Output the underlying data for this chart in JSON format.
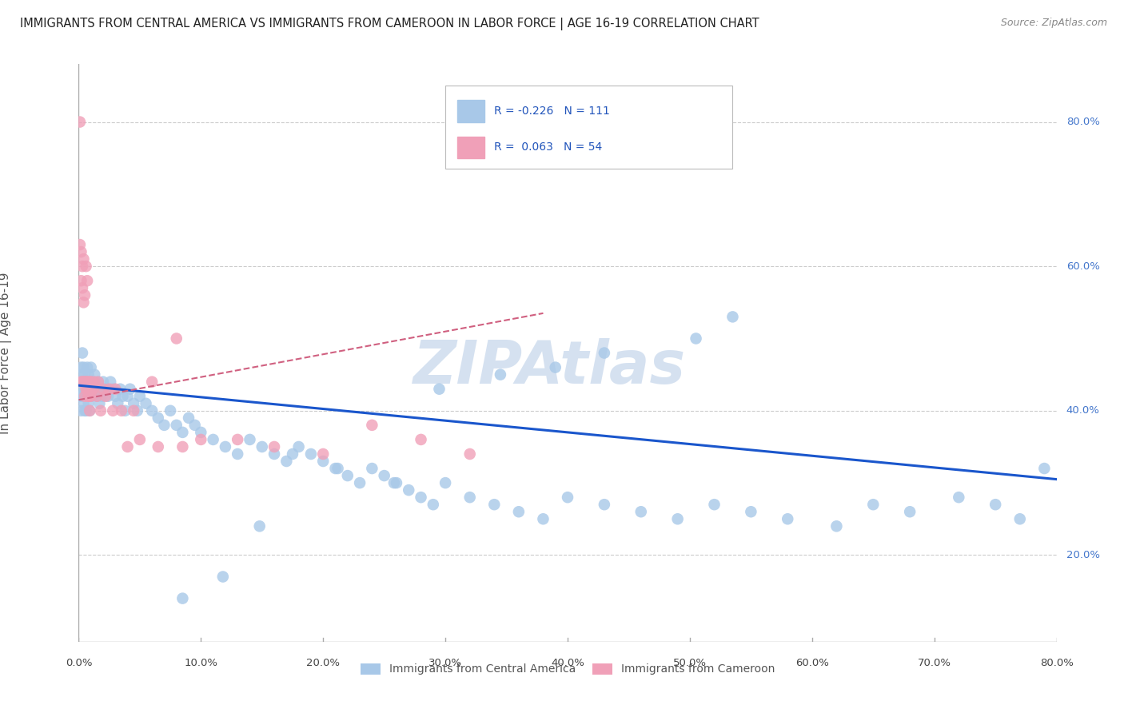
{
  "title": "IMMIGRANTS FROM CENTRAL AMERICA VS IMMIGRANTS FROM CAMEROON IN LABOR FORCE | AGE 16-19 CORRELATION CHART",
  "source": "Source: ZipAtlas.com",
  "ylabel": "In Labor Force | Age 16-19",
  "xlim": [
    0.0,
    0.8
  ],
  "ylim": [
    0.08,
    0.88
  ],
  "xticks": [
    0.0,
    0.1,
    0.2,
    0.3,
    0.4,
    0.5,
    0.6,
    0.7,
    0.8
  ],
  "yticks_right": [
    0.2,
    0.4,
    0.6,
    0.8
  ],
  "r_blue": -0.226,
  "n_blue": 111,
  "r_pink": 0.063,
  "n_pink": 54,
  "color_blue": "#A8C8E8",
  "color_pink": "#F0A0B8",
  "line_blue": "#1A56CC",
  "line_pink": "#D06080",
  "legend_label_blue": "Immigrants from Central America",
  "legend_label_pink": "Immigrants from Cameroon",
  "watermark": "ZIPAtlas",
  "background_color": "#ffffff",
  "grid_color": "#cccccc",
  "blue_x": [
    0.001,
    0.001,
    0.002,
    0.002,
    0.002,
    0.003,
    0.003,
    0.003,
    0.004,
    0.004,
    0.004,
    0.005,
    0.005,
    0.005,
    0.006,
    0.006,
    0.006,
    0.007,
    0.007,
    0.008,
    0.008,
    0.008,
    0.009,
    0.009,
    0.01,
    0.01,
    0.01,
    0.011,
    0.012,
    0.013,
    0.014,
    0.015,
    0.016,
    0.017,
    0.018,
    0.019,
    0.02,
    0.022,
    0.024,
    0.026,
    0.028,
    0.03,
    0.032,
    0.034,
    0.036,
    0.038,
    0.04,
    0.042,
    0.045,
    0.048,
    0.05,
    0.055,
    0.06,
    0.065,
    0.07,
    0.075,
    0.08,
    0.085,
    0.09,
    0.095,
    0.1,
    0.11,
    0.12,
    0.13,
    0.14,
    0.15,
    0.16,
    0.17,
    0.18,
    0.19,
    0.2,
    0.21,
    0.22,
    0.23,
    0.24,
    0.25,
    0.26,
    0.27,
    0.28,
    0.29,
    0.3,
    0.32,
    0.34,
    0.36,
    0.38,
    0.4,
    0.43,
    0.46,
    0.49,
    0.52,
    0.55,
    0.58,
    0.62,
    0.65,
    0.68,
    0.72,
    0.75,
    0.77,
    0.79,
    0.505,
    0.535,
    0.43,
    0.39,
    0.345,
    0.295,
    0.258,
    0.212,
    0.175,
    0.148,
    0.118,
    0.085
  ],
  "blue_y": [
    0.44,
    0.42,
    0.46,
    0.43,
    0.4,
    0.45,
    0.42,
    0.48,
    0.41,
    0.44,
    0.46,
    0.43,
    0.4,
    0.45,
    0.42,
    0.44,
    0.4,
    0.43,
    0.46,
    0.44,
    0.41,
    0.45,
    0.42,
    0.4,
    0.44,
    0.46,
    0.43,
    0.42,
    0.44,
    0.45,
    0.43,
    0.42,
    0.44,
    0.41,
    0.43,
    0.42,
    0.44,
    0.43,
    0.42,
    0.44,
    0.43,
    0.42,
    0.41,
    0.43,
    0.42,
    0.4,
    0.42,
    0.43,
    0.41,
    0.4,
    0.42,
    0.41,
    0.4,
    0.39,
    0.38,
    0.4,
    0.38,
    0.37,
    0.39,
    0.38,
    0.37,
    0.36,
    0.35,
    0.34,
    0.36,
    0.35,
    0.34,
    0.33,
    0.35,
    0.34,
    0.33,
    0.32,
    0.31,
    0.3,
    0.32,
    0.31,
    0.3,
    0.29,
    0.28,
    0.27,
    0.3,
    0.28,
    0.27,
    0.26,
    0.25,
    0.28,
    0.27,
    0.26,
    0.25,
    0.27,
    0.26,
    0.25,
    0.24,
    0.27,
    0.26,
    0.28,
    0.27,
    0.25,
    0.32,
    0.5,
    0.53,
    0.48,
    0.46,
    0.45,
    0.43,
    0.3,
    0.32,
    0.34,
    0.24,
    0.17,
    0.14
  ],
  "pink_x": [
    0.001,
    0.001,
    0.002,
    0.002,
    0.002,
    0.003,
    0.003,
    0.004,
    0.004,
    0.005,
    0.005,
    0.006,
    0.006,
    0.007,
    0.007,
    0.008,
    0.008,
    0.009,
    0.01,
    0.012,
    0.015,
    0.018,
    0.022,
    0.028,
    0.035,
    0.045,
    0.06,
    0.08,
    0.01,
    0.013,
    0.016,
    0.02,
    0.025,
    0.03,
    0.04,
    0.05,
    0.065,
    0.085,
    0.1,
    0.13,
    0.16,
    0.2,
    0.24,
    0.28,
    0.32,
    0.003,
    0.004,
    0.005,
    0.006,
    0.007,
    0.008,
    0.009,
    0.01,
    0.011
  ],
  "pink_y": [
    0.8,
    0.63,
    0.62,
    0.58,
    0.44,
    0.6,
    0.57,
    0.61,
    0.55,
    0.56,
    0.44,
    0.6,
    0.44,
    0.58,
    0.43,
    0.44,
    0.42,
    0.43,
    0.44,
    0.43,
    0.42,
    0.4,
    0.42,
    0.4,
    0.4,
    0.4,
    0.44,
    0.5,
    0.44,
    0.44,
    0.44,
    0.43,
    0.43,
    0.43,
    0.35,
    0.36,
    0.35,
    0.35,
    0.36,
    0.36,
    0.35,
    0.34,
    0.38,
    0.36,
    0.34,
    0.44,
    0.44,
    0.42,
    0.43,
    0.44,
    0.42,
    0.4,
    0.42,
    0.43
  ],
  "blue_trend_x0": 0.0,
  "blue_trend_x1": 0.8,
  "blue_trend_y0": 0.435,
  "blue_trend_y1": 0.305,
  "pink_trend_x0": 0.0,
  "pink_trend_x1": 0.38,
  "pink_trend_y0": 0.415,
  "pink_trend_y1": 0.535
}
